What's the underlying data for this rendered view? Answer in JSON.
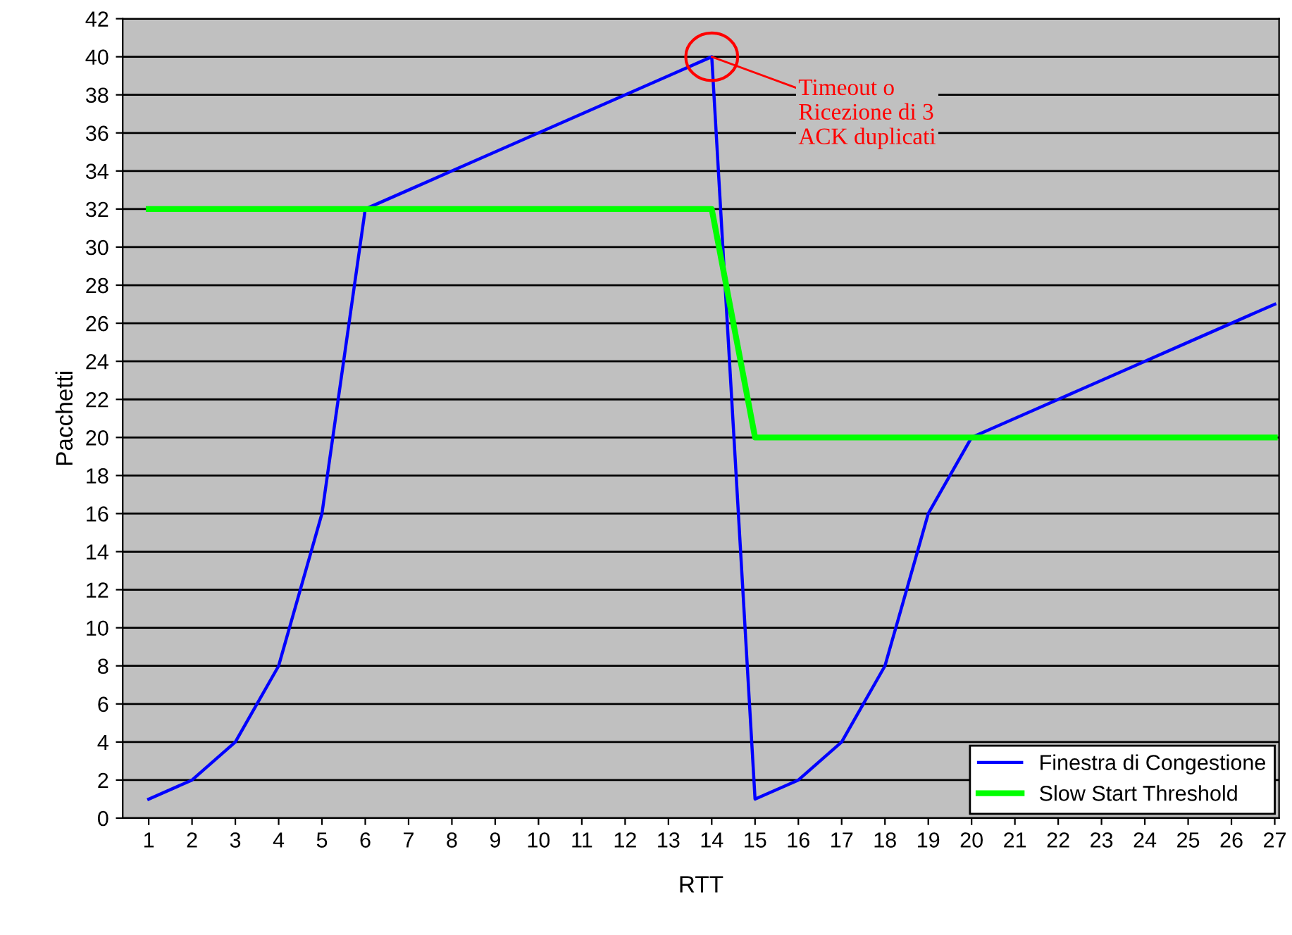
{
  "chart_data": {
    "type": "line",
    "xlabel": "RTT",
    "ylabel": "Pacchetti",
    "categories": [
      "1",
      "2",
      "3",
      "4",
      "5",
      "6",
      "7",
      "8",
      "9",
      "10",
      "11",
      "12",
      "13",
      "14",
      "15",
      "16",
      "17",
      "18",
      "19",
      "20",
      "21",
      "22",
      "23",
      "24",
      "25",
      "26",
      "27"
    ],
    "series": [
      {
        "name": "Finestra di Congestione",
        "color": "#0000ff",
        "values": [
          1,
          2,
          4,
          8,
          16,
          32,
          33,
          34,
          35,
          36,
          37,
          38,
          39,
          40,
          1,
          2,
          4,
          8,
          16,
          20,
          21,
          22,
          23,
          24,
          25,
          26,
          27
        ]
      },
      {
        "name": "Slow Start Threshold",
        "color": "#00ff00",
        "values": [
          32,
          32,
          32,
          32,
          32,
          32,
          32,
          32,
          32,
          32,
          32,
          32,
          32,
          32,
          20,
          20,
          20,
          20,
          20,
          20,
          20,
          20,
          20,
          20,
          20,
          20,
          20
        ]
      }
    ],
    "ylim": [
      0,
      42
    ],
    "yticks": [
      0,
      2,
      4,
      6,
      8,
      10,
      12,
      14,
      16,
      18,
      20,
      22,
      24,
      26,
      28,
      30,
      32,
      34,
      36,
      38,
      40,
      42
    ],
    "grid": "y",
    "legend": "bottom right",
    "marker": "none",
    "line_style": "solid",
    "annotations": [
      {
        "text": "Timeout o\nRicezione di 3\nACK duplicati",
        "x": "14",
        "y": 40
      }
    ]
  }
}
